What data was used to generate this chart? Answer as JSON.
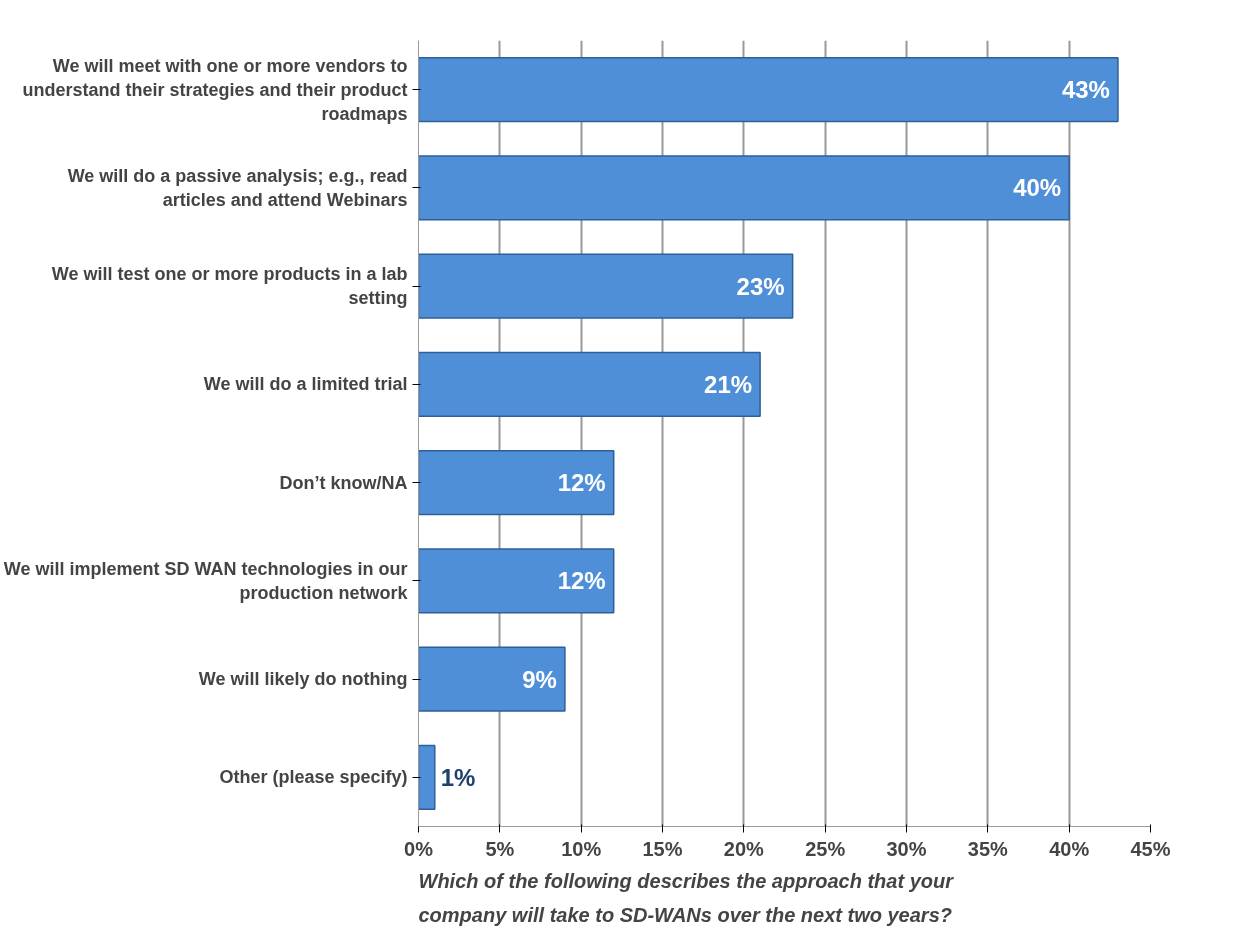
{
  "chart_data": {
    "type": "bar",
    "orientation": "horizontal",
    "categories": [
      "We will meet with one or more vendors to understand their strategies and their product roadmaps",
      "We will do a passive analysis; e.g., read articles and attend Webinars",
      "We will test one or more products in a lab setting",
      "We will do a limited trial",
      "Don’t know/NA",
      "We will implement SD WAN technologies in our production network",
      "We will likely do nothing",
      "Other (please specify)"
    ],
    "values": [
      43,
      40,
      23,
      21,
      12,
      12,
      9,
      1
    ],
    "color": "#4f8fd8",
    "value_labels": [
      "43%",
      "40%",
      "23%",
      "21%",
      "12%",
      "12%",
      "9%",
      "1%"
    ],
    "xlim": [
      0,
      45
    ],
    "xticks": [
      {
        "value": 0,
        "label": "0%"
      },
      {
        "value": 5,
        "label": "5%"
      },
      {
        "value": 10,
        "label": "10%"
      },
      {
        "value": 15,
        "label": "15%"
      },
      {
        "value": 20,
        "label": "20%"
      },
      {
        "value": 25,
        "label": "25%"
      },
      {
        "value": 30,
        "label": "30%"
      },
      {
        "value": 35,
        "label": "35%"
      },
      {
        "value": 40,
        "label": "40%"
      },
      {
        "value": 45,
        "label": "45%"
      }
    ],
    "grid": "x",
    "annotations": [
      "Which of the following describes the approach that your company will take to SD-WANs over the next two years?"
    ]
  }
}
